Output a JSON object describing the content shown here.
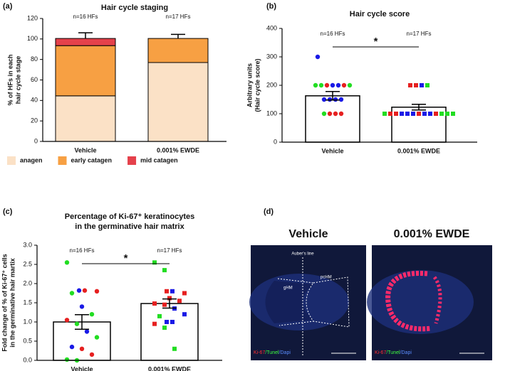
{
  "panels": [
    "(a)",
    "(b)",
    "(c)",
    "(d)"
  ],
  "chart_data": [
    {
      "type": "bar",
      "stacked": true,
      "title": "Hair cycle staging",
      "ylabel": [
        "% of HFs in each",
        "hair cycle stage"
      ],
      "categories": [
        "Vehicle",
        "0.001% EWDE"
      ],
      "annotations": [
        "n=16 HFs",
        "n=17 HFs"
      ],
      "series": [
        {
          "name": "anagen",
          "color": "#fbe1c6",
          "values": [
            44.5,
            77
          ],
          "errors": [
            7.5,
            4
          ]
        },
        {
          "name": "early catagen",
          "color": "#f7a043",
          "values": [
            49,
            23.5
          ],
          "errors": [
            6.5,
            4
          ]
        },
        {
          "name": "mid catagen",
          "color": "#e5414b",
          "values": [
            7,
            0
          ],
          "errors": [
            5.5,
            null
          ]
        }
      ],
      "ylim": [
        0,
        120
      ],
      "yticks": [
        0,
        20,
        40,
        60,
        80,
        100,
        120
      ]
    },
    {
      "type": "bar",
      "title": "Hair cycle score",
      "ylabel": [
        "Arbitrary units",
        "(Hair cycle score)"
      ],
      "categories": [
        "Vehicle",
        "0.001% EWDE"
      ],
      "annotations": [
        "n=16 HFs",
        "n=17 HFs"
      ],
      "significance": "*",
      "values": [
        163,
        123
      ],
      "errors": [
        15,
        10
      ],
      "point_shapes": [
        "circle",
        "square"
      ],
      "points": [
        [
          300,
          200,
          200,
          200,
          200,
          200,
          200,
          200,
          150,
          150,
          150,
          150,
          100,
          100,
          100,
          100
        ],
        [
          200,
          200,
          200,
          200,
          100,
          100,
          100,
          100,
          100,
          100,
          100,
          100,
          100,
          100,
          100,
          100,
          100
        ]
      ],
      "point_colors": [
        [
          "#1a1ae6",
          "#22dd22",
          "#22dd22",
          "#e62020",
          "#1a1ae6",
          "#1a1ae6",
          "#e62020",
          "#22dd22",
          "#1a1ae6",
          "#1a1ae6",
          "#1a1ae6",
          "#1a1ae6",
          "#22dd22",
          "#e62020",
          "#e62020",
          "#e62020"
        ],
        [
          "#e62020",
          "#e62020",
          "#1a1ae6",
          "#22dd22",
          "#22dd22",
          "#e62020",
          "#e62020",
          "#1a1ae6",
          "#1a1ae6",
          "#1a1ae6",
          "#e62020",
          "#1a1ae6",
          "#1a1ae6",
          "#e62020",
          "#22dd22",
          "#22dd22",
          "#22dd22"
        ]
      ],
      "ylim": [
        0,
        400
      ],
      "yticks": [
        0,
        100,
        200,
        300,
        400
      ]
    },
    {
      "type": "bar",
      "title": [
        "Percentage of Ki-67⁺ keratinocytes",
        "in the germinative hair matrix"
      ],
      "ylabel": [
        "Fold change of % of Ki-67⁺ cells",
        "in the germinative hair martix"
      ],
      "categories": [
        "Vehicle",
        "0.001% EWDE"
      ],
      "annotations": [
        "n=16 HFs",
        "n=17 HFs"
      ],
      "significance": "*",
      "values": [
        1.0,
        1.48
      ],
      "errors": [
        0.19,
        0.12
      ],
      "point_shapes": [
        "circle",
        "square"
      ],
      "points": [
        [
          2.55,
          1.82,
          1.82,
          1.8,
          1.75,
          1.4,
          1.2,
          1.05,
          0.95,
          0.75,
          0.6,
          0.35,
          0.3,
          0.15,
          0.02,
          0.0
        ],
        [
          2.55,
          2.35,
          1.8,
          1.75,
          1.8,
          1.62,
          1.55,
          1.48,
          1.45,
          1.35,
          1.2,
          1.15,
          1.0,
          1.0,
          0.95,
          0.85,
          0.3
        ]
      ],
      "point_colors": [
        [
          "#22dd22",
          "#1a1ae6",
          "#e62020",
          "#e62020",
          "#22dd22",
          "#1a1ae6",
          "#22dd22",
          "#e62020",
          "#22dd22",
          "#1a1ae6",
          "#22dd22",
          "#1a1ae6",
          "#e62020",
          "#e62020",
          "#22dd22",
          "#22dd22"
        ],
        [
          "#22dd22",
          "#22dd22",
          "#e62020",
          "#e62020",
          "#1a1ae6",
          "#e62020",
          "#e62020",
          "#e62020",
          "#e62020",
          "#1a1ae6",
          "#1a1ae6",
          "#22dd22",
          "#1a1ae6",
          "#1a1ae6",
          "#e62020",
          "#22dd22",
          "#22dd22"
        ]
      ],
      "ylim": [
        0,
        3
      ],
      "yticks": [
        {
          "value": 0,
          "label": "0.0"
        },
        {
          "value": 0.5,
          "label": "0.5"
        },
        {
          "value": 1,
          "label": "1.0"
        },
        {
          "value": 1.5,
          "label": "1.5"
        },
        {
          "value": 2,
          "label": "2.0"
        },
        {
          "value": 2.5,
          "label": "2.5"
        },
        {
          "value": 3,
          "label": "3.0"
        }
      ]
    }
  ],
  "images": [
    {
      "title": "Vehicle",
      "labels": [
        "Auber's line",
        "gHM",
        "pcHM"
      ],
      "caption": [
        "Ki-67",
        "/Tunel",
        "/Dapi"
      ]
    },
    {
      "title": "0.001% EWDE",
      "caption": [
        "Ki-67",
        "/Tunel",
        "/Dapi"
      ]
    }
  ]
}
